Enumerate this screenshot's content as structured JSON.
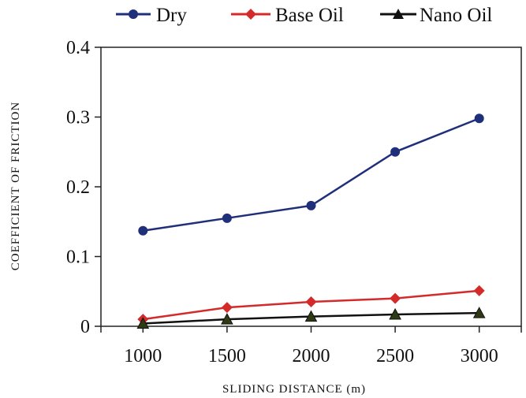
{
  "chart_data": {
    "type": "line",
    "title": "",
    "xlabel": "SLIDING DISTANCE (m)",
    "ylabel": "COEFFICIENT OF FRICTION",
    "x": [
      1000,
      1500,
      2000,
      2500,
      3000
    ],
    "x_tick_labels": [
      "1000",
      "1500",
      "2000",
      "2500",
      "3000"
    ],
    "y_tick_labels": [
      "0",
      "0.1",
      "0.2",
      "0.3",
      "0.4"
    ],
    "xlim": [
      750,
      3250
    ],
    "ylim": [
      0,
      0.4
    ],
    "grid": false,
    "legend_position": "top",
    "series": [
      {
        "name": "Dry",
        "values": [
          0.137,
          0.155,
          0.173,
          0.25,
          0.298
        ],
        "color": "#1f2f7a",
        "marker": "circle"
      },
      {
        "name": "Base Oil",
        "values": [
          0.01,
          0.027,
          0.035,
          0.04,
          0.051
        ],
        "color": "#d42a2a",
        "marker": "diamond"
      },
      {
        "name": "Nano Oil",
        "values": [
          0.004,
          0.01,
          0.014,
          0.017,
          0.019
        ],
        "color": "#111111",
        "marker": "triangle"
      }
    ]
  }
}
